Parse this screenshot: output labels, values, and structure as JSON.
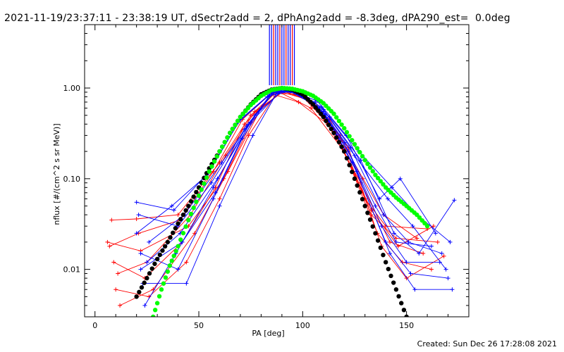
{
  "title": "2021-11-19/23:37:11 - 23:38:19 UT, dSectr2add = 2, dPhAng2add = -8.3deg, dPA290_est=  0.0deg",
  "footer": "Created: Sun Dec 26 17:28:08 2021",
  "colors": {
    "red": "#ff0000",
    "blue": "#0000ff",
    "black": "#000000",
    "green": "#00ff00"
  },
  "chart_data": {
    "type": "line",
    "title": "2021-11-19/23:37:11 - 23:38:19 UT, dSectr2add = 2, dPhAng2add = -8.3deg, dPA290_est=  0.0deg",
    "xlabel": "PA [deg]",
    "ylabel": "nflux [#/(cm^2 s sr MeV)]",
    "xlim": [
      -5,
      180
    ],
    "ylim": [
      0.003,
      5
    ],
    "yscale": "log",
    "xticks": [
      0,
      50,
      100,
      150
    ],
    "xtick_labels": [
      "0",
      "50",
      "100",
      "150"
    ],
    "yticks": [
      0.01,
      0.1,
      1.0
    ],
    "ytick_labels": [
      "0.01",
      "0.10",
      "1.00"
    ],
    "grid": false,
    "legend": "none",
    "series": [
      {
        "color": "black",
        "style": "dots",
        "x": [
          20,
          25,
          30,
          35,
          40,
          45,
          50,
          55,
          60,
          65,
          70,
          75,
          80,
          85,
          90,
          95,
          100,
          105,
          110,
          115,
          120,
          125,
          130,
          135,
          140,
          145,
          150
        ],
        "y": [
          0.005,
          0.008,
          0.013,
          0.02,
          0.032,
          0.05,
          0.08,
          0.13,
          0.2,
          0.32,
          0.48,
          0.66,
          0.85,
          0.96,
          1.0,
          0.96,
          0.85,
          0.66,
          0.48,
          0.32,
          0.2,
          0.1,
          0.05,
          0.025,
          0.012,
          0.006,
          0.003
        ]
      },
      {
        "color": "green",
        "style": "dots",
        "x": [
          28,
          32,
          36,
          40,
          45,
          50,
          55,
          60,
          65,
          70,
          75,
          80,
          85,
          90,
          95,
          100,
          105,
          110,
          115,
          120,
          125,
          130,
          135,
          140,
          145,
          150,
          155,
          160
        ],
        "y": [
          0.003,
          0.006,
          0.011,
          0.018,
          0.035,
          0.065,
          0.12,
          0.2,
          0.32,
          0.48,
          0.65,
          0.82,
          0.95,
          1.0,
          0.98,
          0.92,
          0.82,
          0.68,
          0.52,
          0.36,
          0.24,
          0.16,
          0.11,
          0.08,
          0.062,
          0.05,
          0.04,
          0.03
        ]
      },
      {
        "color": "red",
        "style": "line+plus",
        "x": [
          8,
          20,
          40,
          60,
          75,
          88,
          100,
          115,
          130,
          140,
          160
        ],
        "y": [
          0.035,
          0.036,
          0.04,
          0.15,
          0.5,
          0.95,
          0.8,
          0.35,
          0.06,
          0.03,
          0.028
        ]
      },
      {
        "color": "red",
        "style": "line+plus",
        "x": [
          6,
          22,
          45,
          62,
          78,
          90,
          102,
          118,
          133,
          145,
          165
        ],
        "y": [
          0.02,
          0.016,
          0.03,
          0.1,
          0.55,
          0.9,
          0.75,
          0.3,
          0.04,
          0.022,
          0.02
        ]
      },
      {
        "color": "red",
        "style": "line+plus",
        "x": [
          9,
          24,
          42,
          58,
          72,
          86,
          98,
          112,
          128,
          142,
          158
        ],
        "y": [
          0.012,
          0.008,
          0.02,
          0.08,
          0.4,
          0.85,
          0.7,
          0.4,
          0.09,
          0.02,
          0.015
        ]
      },
      {
        "color": "red",
        "style": "line+plus",
        "x": [
          10,
          26,
          44,
          60,
          74,
          88,
          104,
          120,
          136,
          148,
          162
        ],
        "y": [
          0.006,
          0.005,
          0.012,
          0.06,
          0.3,
          0.92,
          0.6,
          0.2,
          0.025,
          0.012,
          0.01
        ]
      },
      {
        "color": "red",
        "style": "line+plus",
        "x": [
          12,
          28,
          48,
          64,
          80,
          92,
          106,
          122,
          138,
          150,
          168
        ],
        "y": [
          0.004,
          0.006,
          0.025,
          0.12,
          0.6,
          0.97,
          0.65,
          0.22,
          0.018,
          0.008,
          0.014
        ]
      },
      {
        "color": "red",
        "style": "line+plus",
        "x": [
          7,
          21,
          41,
          57,
          71,
          85,
          99,
          113,
          129,
          139,
          155
        ],
        "y": [
          0.018,
          0.025,
          0.035,
          0.12,
          0.45,
          0.88,
          0.85,
          0.45,
          0.1,
          0.04,
          0.022
        ]
      },
      {
        "color": "red",
        "style": "line+plus",
        "x": [
          11,
          25,
          46,
          63,
          77,
          91,
          103,
          117,
          133,
          146,
          163
        ],
        "y": [
          0.009,
          0.012,
          0.04,
          0.18,
          0.55,
          0.93,
          0.72,
          0.28,
          0.045,
          0.018,
          0.03
        ]
      },
      {
        "color": "blue",
        "style": "line+plus",
        "x": [
          20,
          38,
          55,
          70,
          84,
          92,
          106,
          120,
          135,
          145,
          162
        ],
        "y": [
          0.055,
          0.045,
          0.12,
          0.45,
          0.85,
          0.95,
          0.7,
          0.25,
          0.05,
          0.02,
          0.018
        ]
      },
      {
        "color": "blue",
        "style": "line+plus",
        "x": [
          21,
          40,
          56,
          72,
          86,
          94,
          108,
          122,
          138,
          150,
          166
        ],
        "y": [
          0.04,
          0.03,
          0.09,
          0.35,
          0.9,
          0.93,
          0.6,
          0.2,
          0.03,
          0.012,
          0.012
        ]
      },
      {
        "color": "blue",
        "style": "line+plus",
        "x": [
          22,
          42,
          58,
          74,
          87,
          96,
          110,
          124,
          140,
          152,
          170
        ],
        "y": [
          0.01,
          0.02,
          0.07,
          0.4,
          0.95,
          0.9,
          0.55,
          0.15,
          0.02,
          0.009,
          0.008
        ]
      },
      {
        "color": "blue",
        "style": "line+plus",
        "x": [
          23,
          44,
          60,
          76,
          88,
          98,
          112,
          126,
          142,
          154,
          172
        ],
        "y": [
          0.007,
          0.007,
          0.05,
          0.3,
          0.92,
          0.88,
          0.45,
          0.12,
          0.015,
          0.006,
          0.006
        ]
      },
      {
        "color": "blue",
        "style": "line+plus",
        "x": [
          24,
          39,
          57,
          73,
          85,
          95,
          109,
          123,
          139,
          151,
          167
        ],
        "y": [
          0.004,
          0.015,
          0.08,
          0.38,
          0.88,
          0.94,
          0.62,
          0.22,
          0.04,
          0.02,
          0.015
        ]
      },
      {
        "color": "blue",
        "style": "line+plus",
        "x": [
          25,
          41,
          59,
          75,
          89,
          97,
          111,
          125,
          141,
          153,
          169
        ],
        "y": [
          0.012,
          0.025,
          0.1,
          0.42,
          0.9,
          0.9,
          0.5,
          0.18,
          0.06,
          0.03,
          0.01
        ]
      },
      {
        "color": "blue",
        "style": "line+plus",
        "x": [
          26,
          43,
          61,
          77,
          90,
          99,
          113,
          127,
          143,
          155,
          171
        ],
        "y": [
          0.02,
          0.04,
          0.15,
          0.5,
          0.93,
          0.85,
          0.48,
          0.2,
          0.08,
          0.04,
          0.02
        ]
      },
      {
        "color": "blue",
        "style": "line+plus",
        "x": [
          20,
          37,
          54,
          69,
          83,
          93,
          107,
          121,
          137,
          147,
          164
        ],
        "y": [
          0.025,
          0.05,
          0.11,
          0.42,
          0.8,
          0.96,
          0.72,
          0.3,
          0.06,
          0.1,
          0.025
        ]
      },
      {
        "color": "blue",
        "style": "line+plus",
        "x": [
          22,
          40,
          57,
          71,
          84,
          94,
          110,
          128,
          144,
          156,
          173
        ],
        "y": [
          0.015,
          0.01,
          0.06,
          0.28,
          0.82,
          0.92,
          0.58,
          0.16,
          0.025,
          0.015,
          0.058
        ]
      }
    ],
    "top_bundle": {
      "x": [
        84,
        85,
        86,
        87,
        88,
        89,
        90,
        91,
        92,
        93,
        94,
        95,
        96
      ],
      "colors": [
        "blue",
        "blue",
        "red",
        "blue",
        "blue",
        "red",
        "blue",
        "blue",
        "red",
        "blue",
        "blue",
        "red",
        "blue"
      ]
    }
  }
}
